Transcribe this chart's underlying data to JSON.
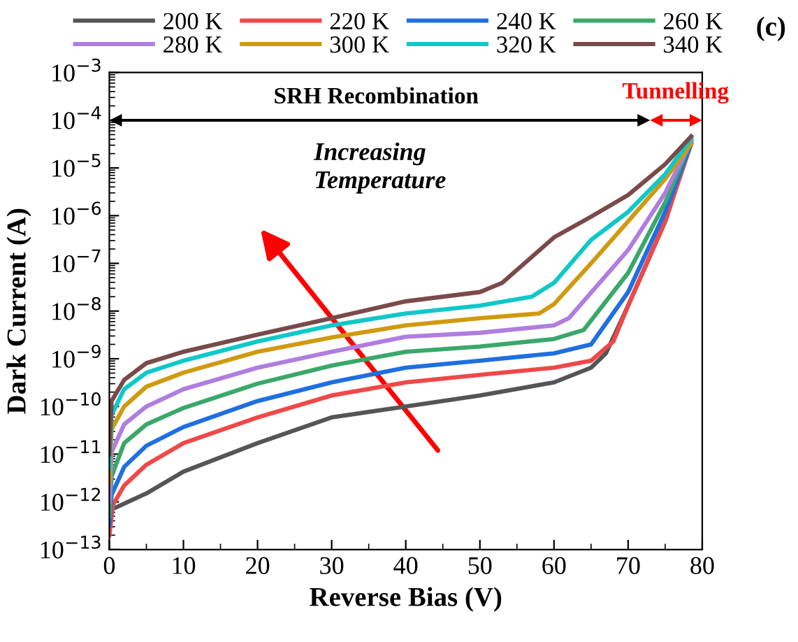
{
  "chart_data": {
    "type": "line",
    "xlabel": "Reverse Bias (V)",
    "ylabel": "Dark Current (A)",
    "log": "y",
    "grid": false,
    "legend": "top",
    "marker": "none",
    "line_style": "solid",
    "xlim": [
      0,
      80
    ],
    "xticks": [
      0,
      10,
      20,
      30,
      40,
      50,
      60,
      70,
      80
    ],
    "ylim": [
      1e-13,
      0.001
    ],
    "yticks": [
      {
        "value": 1e-13,
        "label": "10$^{−13}$"
      },
      {
        "value": 1e-12,
        "label": "10$^{−12}$"
      },
      {
        "value": 1e-11,
        "label": "10$^{−11}$"
      },
      {
        "value": 1e-10,
        "label": "10$^{−10}$"
      },
      {
        "value": 1e-09,
        "label": "10$^{−9}$"
      },
      {
        "value": 1e-08,
        "label": "10$^{−8}$"
      },
      {
        "value": 1e-07,
        "label": "10$^{−7}$"
      },
      {
        "value": 1e-06,
        "label": "10$^{−6}$"
      },
      {
        "value": 1e-05,
        "label": "10$^{−5}$"
      },
      {
        "value": 0.0001,
        "label": "10$^{−4}$"
      },
      {
        "value": 0.001,
        "label": "10$^{−3}$"
      }
    ],
    "annotations": [
      "(c)",
      "Increasing\nTemperature",
      "SRH Recombination",
      "Tunnelling"
    ],
    "series": [
      {
        "name": "200 K",
        "color": "#555555",
        "x": [
          0,
          0.3,
          5,
          10,
          20,
          30,
          40,
          50,
          60,
          65,
          67,
          70,
          75,
          78.5
        ],
        "values": [
          2.2e-13,
          6.9e-13,
          1.5e-12,
          4.3e-12,
          1.7e-11,
          5.9e-11,
          1e-10,
          1.7e-10,
          3.2e-10,
          6.5e-10,
          1.3e-09,
          1.3e-08,
          7.6e-07,
          3.6e-05
        ]
      },
      {
        "name": "220 K",
        "color": "#f04848",
        "x": [
          0,
          0.5,
          2,
          5,
          10,
          20,
          30,
          40,
          50,
          60,
          65,
          68,
          70,
          75,
          78.5
        ],
        "values": [
          2e-13,
          8.7e-13,
          2.2e-12,
          6e-12,
          1.7e-11,
          5.9e-11,
          1.7e-10,
          3.2e-10,
          4.6e-10,
          6.5e-10,
          9.1e-10,
          2.3e-09,
          1.3e-08,
          7.6e-07,
          3.2e-05
        ]
      },
      {
        "name": "240 K",
        "color": "#1f6fe0",
        "x": [
          0,
          0.3,
          2,
          5,
          10,
          20,
          30,
          40,
          50,
          60,
          65,
          70,
          75,
          78.5
        ],
        "values": [
          3.2e-13,
          1.4e-12,
          5.4e-12,
          1.5e-11,
          3.7e-11,
          1.3e-10,
          3.2e-10,
          6.5e-10,
          9.1e-10,
          1.3e-09,
          2e-09,
          2.5e-08,
          1.2e-06,
          3.2e-05
        ]
      },
      {
        "name": "260 K",
        "color": "#3aa86a",
        "x": [
          0,
          0.3,
          2,
          5,
          10,
          20,
          30,
          40,
          50,
          60,
          64,
          70,
          75,
          78.5
        ],
        "values": [
          5e-13,
          3.4e-12,
          1.7e-11,
          4.2e-11,
          9.3e-11,
          3e-10,
          7.2e-10,
          1.4e-09,
          1.8e-09,
          2.6e-09,
          4e-09,
          6.3e-08,
          1.9e-06,
          3.6e-05
        ]
      },
      {
        "name": "280 K",
        "color": "#b07de0",
        "x": [
          0,
          0.3,
          2,
          5,
          10,
          20,
          30,
          40,
          50,
          60,
          62,
          70,
          75,
          78.5
        ],
        "values": [
          1e-12,
          1.1e-11,
          4.2e-11,
          1e-10,
          2.3e-10,
          6.5e-10,
          1.4e-09,
          2.9e-09,
          3.5e-09,
          5e-09,
          7.1e-09,
          1.9e-07,
          3e-06,
          3.6e-05
        ]
      },
      {
        "name": "300 K",
        "color": "#d09a10",
        "x": [
          0,
          0.3,
          2,
          5,
          10,
          20,
          30,
          40,
          50,
          58,
          60,
          65,
          70,
          75,
          78.5
        ],
        "values": [
          2.5e-12,
          3.3e-11,
          1e-10,
          2.6e-10,
          5.1e-10,
          1.4e-09,
          2.8e-09,
          5e-09,
          7.1e-09,
          8.9e-09,
          1.4e-08,
          1e-07,
          7.6e-07,
          5.9e-06,
          3.2e-05
        ]
      },
      {
        "name": "320 K",
        "color": "#10c8c8",
        "x": [
          0,
          0.3,
          2,
          5,
          10,
          20,
          30,
          40,
          50,
          57,
          60,
          65,
          70,
          75,
          78.5
        ],
        "values": [
          5e-12,
          6.6e-11,
          2.3e-10,
          5.1e-10,
          9.1e-10,
          2.3e-09,
          5e-09,
          8.9e-09,
          1.3e-08,
          2e-08,
          3.9e-08,
          3.1e-07,
          1.2e-06,
          7.4e-06,
          4.1e-05
        ]
      },
      {
        "name": "340 K",
        "color": "#7a4a4a",
        "x": [
          0,
          0.3,
          2,
          5,
          10,
          20,
          30,
          40,
          50,
          53,
          60,
          65,
          70,
          75,
          78.5
        ],
        "values": [
          1e-11,
          1.3e-10,
          3.6e-10,
          8.1e-10,
          1.4e-09,
          3.2e-09,
          7.1e-09,
          1.6e-08,
          2.5e-08,
          3.9e-08,
          3.5e-07,
          9.5e-07,
          2.7e-06,
          1.2e-05,
          4.6e-05
        ]
      }
    ]
  }
}
